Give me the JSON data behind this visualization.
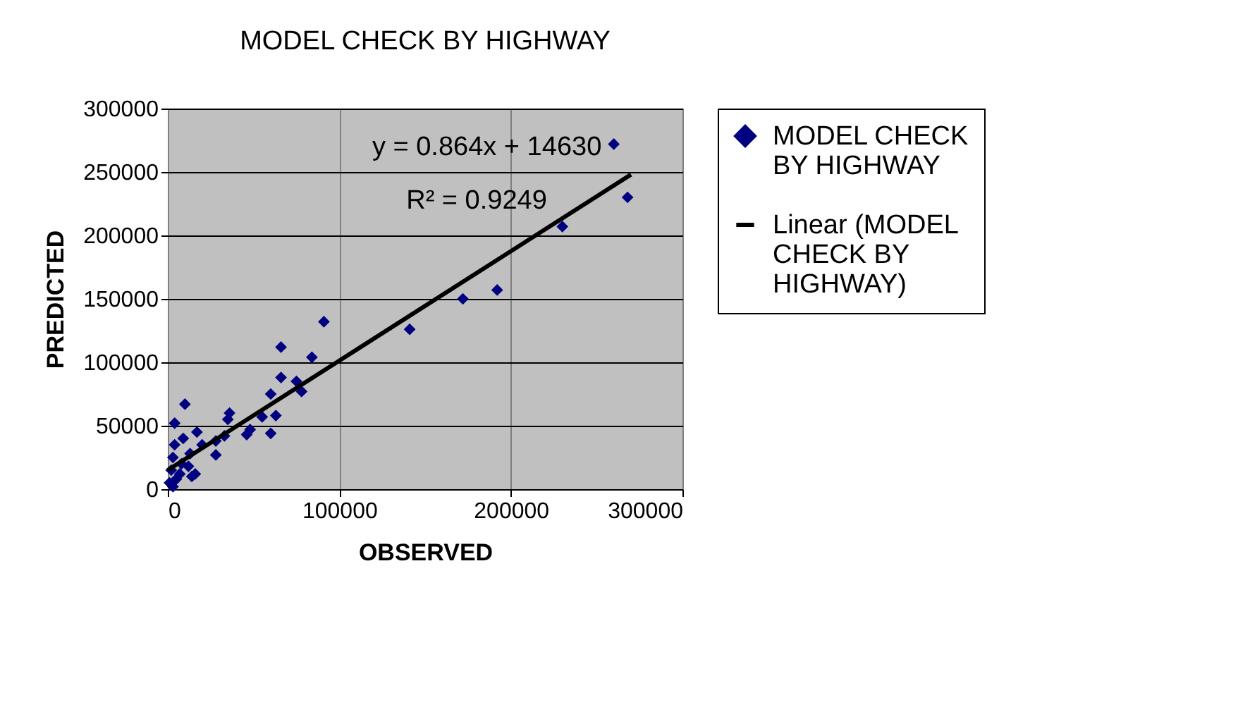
{
  "chart_data": {
    "type": "scatter",
    "title": "MODEL CHECK BY HIGHWAY",
    "xlabel": "OBSERVED",
    "ylabel": "PREDICTED",
    "xlim": [
      0,
      300000
    ],
    "ylim": [
      0,
      300000
    ],
    "xticks": [
      0,
      100000,
      200000,
      300000
    ],
    "yticks": [
      0,
      50000,
      100000,
      150000,
      200000,
      250000,
      300000
    ],
    "grid": true,
    "legend": "right",
    "annotations": [
      "y = 0.864x + 14630",
      "R² = 0.9249"
    ],
    "series": [
      {
        "name": "MODEL CHECK BY HIGHWAY",
        "color": "#000080",
        "marker": "diamond",
        "x": [
          260000,
          268000,
          230000,
          192000,
          172000,
          141000,
          91000,
          84000,
          78000,
          75000,
          66000,
          66000,
          63000,
          60000,
          60000,
          55000,
          48000,
          46000,
          36000,
          35000,
          33000,
          28000,
          28000,
          20000,
          17000,
          14000,
          13000,
          10000,
          9000,
          8000,
          4000,
          4000,
          3000,
          2000,
          1000,
          3000,
          5000,
          7000,
          12000,
          16000
        ],
        "values": [
          272000,
          230000,
          207000,
          157000,
          150000,
          126000,
          132000,
          104000,
          77000,
          85000,
          112000,
          88000,
          58000,
          75000,
          44000,
          57000,
          47000,
          43000,
          60000,
          55000,
          42000,
          27000,
          38000,
          35000,
          45000,
          10000,
          28000,
          67000,
          40000,
          20000,
          52000,
          35000,
          25000,
          15000,
          5000,
          2000,
          8000,
          12000,
          18000,
          12000
        ]
      },
      {
        "name": "Linear (MODEL CHECK BY HIGHWAY)",
        "color": "#000000",
        "type": "line",
        "marker": "none",
        "line_style": "solid",
        "x": [
          0,
          270000
        ],
        "values": [
          15000,
          248000
        ]
      }
    ]
  }
}
